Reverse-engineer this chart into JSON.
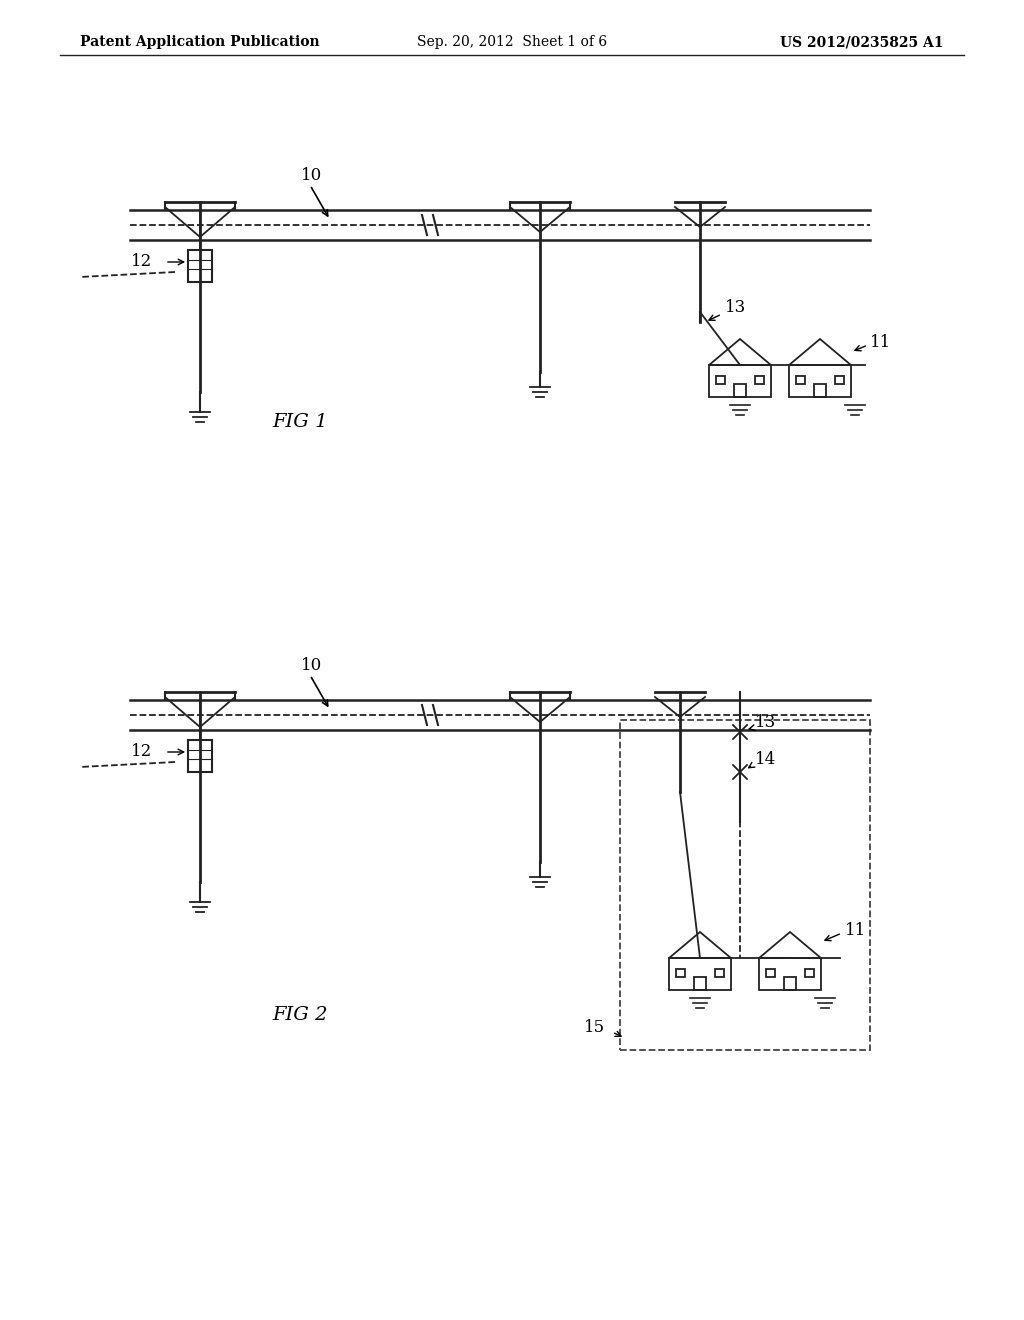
{
  "bg_color": "#ffffff",
  "header_left": "Patent Application Publication",
  "header_center": "Sep. 20, 2012  Sheet 1 of 6",
  "header_right": "US 2012/0235825 A1",
  "fig1_label": "FIG 1",
  "fig2_label": "FIG 2",
  "label_10_fig1": "10",
  "label_12_fig1": "12",
  "label_13_fig1": "13",
  "label_11_fig1": "11",
  "label_10_fig2": "10",
  "label_12_fig2": "12",
  "label_13_fig2": "13",
  "label_14_fig2": "14",
  "label_11_fig2": "11",
  "label_15_fig2": "15",
  "line_color": "#222222",
  "text_color": "#000000"
}
